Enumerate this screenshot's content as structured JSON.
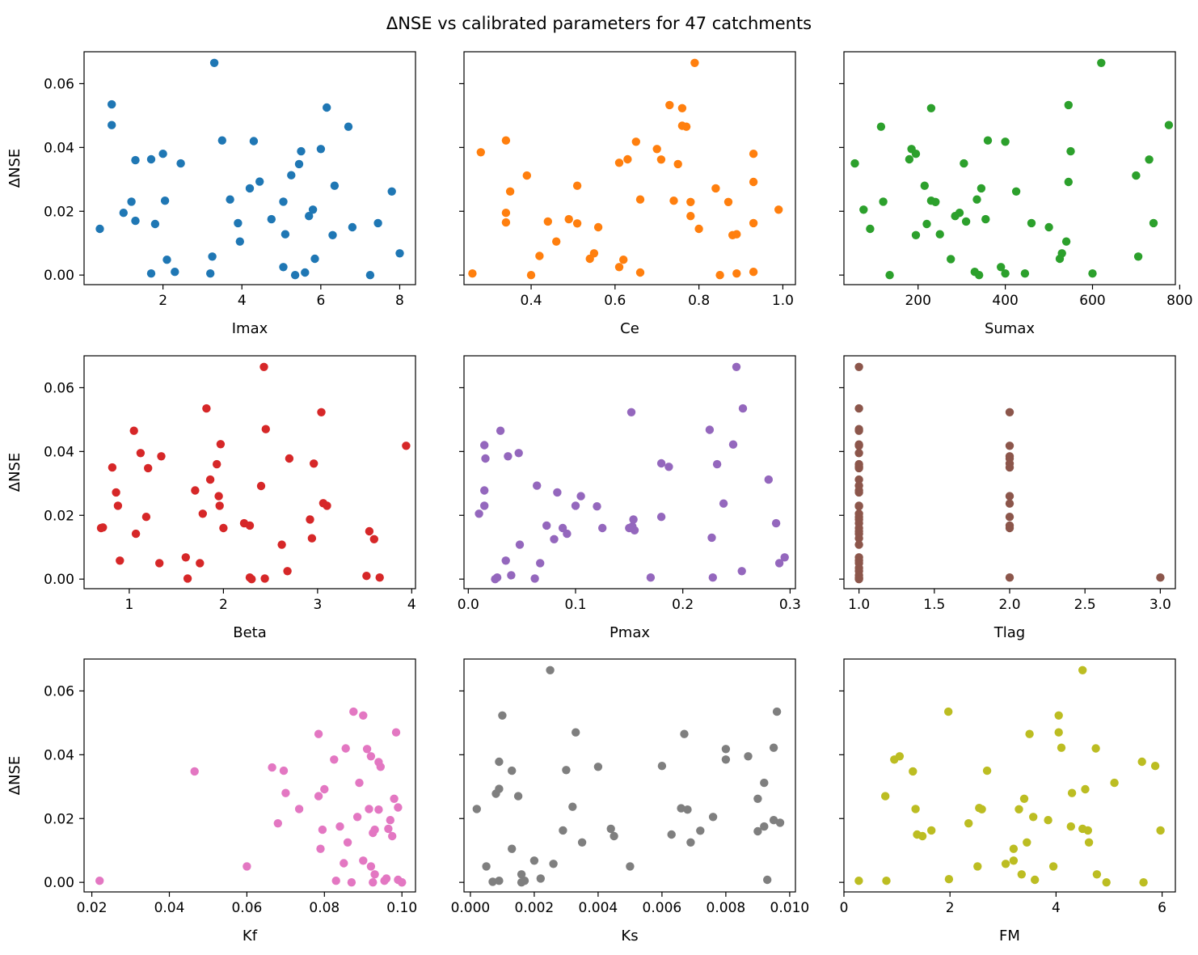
{
  "title": "ΔNSE vs calibrated parameters for 47 catchments",
  "chart_data": [
    {
      "type": "scatter",
      "xlabel": "Imax",
      "ylabel": "ΔNSE",
      "color": "#1f77b4",
      "xlim": [
        0,
        8.4
      ],
      "ylim": [
        -0.003,
        0.07
      ],
      "xticks": [
        2,
        4,
        6,
        8
      ],
      "xtick_labels": [
        "2",
        "4",
        "6",
        "8"
      ],
      "yticks": [
        0,
        0.02,
        0.04,
        0.06
      ],
      "ytick_labels": [
        "0.00",
        "0.02",
        "0.04",
        "0.06"
      ],
      "x": [
        0.4,
        0.7,
        0.7,
        1.0,
        1.2,
        1.3,
        1.3,
        1.7,
        1.7,
        1.8,
        2.0,
        2.05,
        2.1,
        2.3,
        2.45,
        3.2,
        3.25,
        3.3,
        3.5,
        3.7,
        3.9,
        3.95,
        4.2,
        4.3,
        4.45,
        4.75,
        5.05,
        5.05,
        5.1,
        5.25,
        5.35,
        5.45,
        5.5,
        5.6,
        5.7,
        5.8,
        5.85,
        6.0,
        6.15,
        6.3,
        6.35,
        6.7,
        6.8,
        7.25,
        7.45,
        7.8,
        8.0
      ],
      "y": [
        0.0145,
        0.0535,
        0.047,
        0.0195,
        0.023,
        0.036,
        0.017,
        0.0363,
        0.0005,
        0.016,
        0.038,
        0.0233,
        0.0048,
        0.001,
        0.035,
        0.0005,
        0.0058,
        0.0665,
        0.0422,
        0.0237,
        0.0163,
        0.0105,
        0.0272,
        0.042,
        0.0293,
        0.0175,
        0.0025,
        0.023,
        0.0128,
        0.0313,
        0.0,
        0.0348,
        0.0388,
        0.0008,
        0.0185,
        0.0205,
        0.0051,
        0.0395,
        0.0525,
        0.0125,
        0.028,
        0.0465,
        0.015,
        0.0,
        0.0163,
        0.0262,
        0.0068
      ]
    },
    {
      "type": "scatter",
      "xlabel": "Ce",
      "ylabel": "ΔNSE",
      "color": "#ff7f0e",
      "xlim": [
        0.24,
        1.03
      ],
      "ylim": [
        -0.003,
        0.07
      ],
      "xticks": [
        0.4,
        0.6,
        0.8,
        1.0
      ],
      "xtick_labels": [
        "0.4",
        "0.6",
        "0.8",
        "1.0"
      ],
      "yticks": [
        0,
        0.02,
        0.04,
        0.06
      ],
      "ytick_labels": [
        "0.00",
        "0.02",
        "0.04",
        "0.06"
      ],
      "x": [
        0.26,
        0.28,
        0.34,
        0.34,
        0.34,
        0.35,
        0.39,
        0.4,
        0.42,
        0.44,
        0.46,
        0.49,
        0.51,
        0.51,
        0.54,
        0.55,
        0.56,
        0.61,
        0.61,
        0.62,
        0.63,
        0.65,
        0.66,
        0.66,
        0.7,
        0.71,
        0.73,
        0.74,
        0.75,
        0.76,
        0.76,
        0.77,
        0.78,
        0.78,
        0.79,
        0.8,
        0.84,
        0.85,
        0.87,
        0.88,
        0.89,
        0.89,
        0.93,
        0.93,
        0.93,
        0.93,
        0.99
      ],
      "y": [
        0.0005,
        0.0385,
        0.0165,
        0.0195,
        0.0422,
        0.0262,
        0.0312,
        0.0,
        0.006,
        0.0168,
        0.0105,
        0.0175,
        0.028,
        0.0162,
        0.0051,
        0.0068,
        0.015,
        0.0025,
        0.0352,
        0.0048,
        0.0363,
        0.0418,
        0.0237,
        0.0008,
        0.0395,
        0.0362,
        0.0533,
        0.0233,
        0.0348,
        0.0523,
        0.0468,
        0.0465,
        0.0185,
        0.0229,
        0.0665,
        0.0145,
        0.0272,
        0.0,
        0.0229,
        0.0125,
        0.0128,
        0.0005,
        0.038,
        0.0292,
        0.0163,
        0.001,
        0.0205
      ]
    },
    {
      "type": "scatter",
      "xlabel": "Sumax",
      "ylabel": "ΔNSE",
      "color": "#2ca02c",
      "xlim": [
        30,
        790
      ],
      "ylim": [
        -0.003,
        0.07
      ],
      "xticks": [
        200,
        400,
        600,
        800
      ],
      "xtick_labels": [
        "200",
        "400",
        "600",
        "800"
      ],
      "yticks": [
        0,
        0.02,
        0.04,
        0.06
      ],
      "ytick_labels": [
        "0.00",
        "0.02",
        "0.04",
        "0.06"
      ],
      "x": [
        55,
        75,
        90,
        115,
        120,
        135,
        180,
        185,
        195,
        195,
        215,
        220,
        230,
        230,
        240,
        250,
        275,
        285,
        295,
        305,
        310,
        330,
        335,
        340,
        345,
        355,
        360,
        390,
        400,
        400,
        425,
        445,
        460,
        500,
        525,
        530,
        540,
        545,
        545,
        550,
        600,
        620,
        700,
        705,
        730,
        740,
        775
      ],
      "y": [
        0.035,
        0.0205,
        0.0145,
        0.0465,
        0.023,
        0.0,
        0.0363,
        0.0395,
        0.0125,
        0.038,
        0.028,
        0.016,
        0.0233,
        0.0523,
        0.0229,
        0.0128,
        0.005,
        0.0185,
        0.0195,
        0.035,
        0.0168,
        0.001,
        0.0237,
        0.0,
        0.0272,
        0.0175,
        0.0422,
        0.0025,
        0.0418,
        0.0005,
        0.0262,
        0.0005,
        0.0163,
        0.015,
        0.0051,
        0.0068,
        0.0105,
        0.0292,
        0.0533,
        0.0388,
        0.0005,
        0.0665,
        0.0312,
        0.0058,
        0.0362,
        0.0163,
        0.047
      ]
    },
    {
      "type": "scatter",
      "xlabel": "Beta",
      "ylabel": "ΔNSE",
      "color": "#d62728",
      "xlim": [
        0.52,
        4.04
      ],
      "ylim": [
        -0.003,
        0.07
      ],
      "xticks": [
        1,
        2,
        3,
        4
      ],
      "xtick_labels": [
        "1",
        "2",
        "3",
        "4"
      ],
      "yticks": [
        0,
        0.02,
        0.04,
        0.06
      ],
      "ytick_labels": [
        "0.00",
        "0.02",
        "0.04",
        "0.06"
      ],
      "x": [
        0.7,
        0.72,
        0.82,
        0.86,
        0.88,
        0.9,
        1.05,
        1.07,
        1.12,
        1.18,
        1.2,
        1.32,
        1.34,
        1.6,
        1.62,
        1.7,
        1.75,
        1.78,
        1.82,
        1.86,
        1.93,
        1.95,
        1.96,
        1.97,
        2.0,
        2.22,
        2.28,
        2.28,
        2.3,
        2.4,
        2.43,
        2.44,
        2.45,
        2.62,
        2.68,
        2.7,
        2.92,
        2.94,
        2.96,
        3.04,
        3.06,
        3.1,
        3.52,
        3.55,
        3.6,
        3.66,
        3.94
      ],
      "y": [
        0.016,
        0.0162,
        0.035,
        0.0272,
        0.023,
        0.0058,
        0.0465,
        0.0142,
        0.0395,
        0.0195,
        0.0348,
        0.005,
        0.0385,
        0.0068,
        0.0002,
        0.0278,
        0.005,
        0.0205,
        0.0535,
        0.0312,
        0.036,
        0.026,
        0.023,
        0.0423,
        0.016,
        0.0175,
        0.0005,
        0.0168,
        0.0,
        0.0292,
        0.0665,
        0.0002,
        0.047,
        0.0108,
        0.0025,
        0.0378,
        0.0187,
        0.0128,
        0.0362,
        0.0523,
        0.0238,
        0.023,
        0.001,
        0.015,
        0.0125,
        0.0005,
        0.0418
      ]
    },
    {
      "type": "scatter",
      "xlabel": "Pmax",
      "ylabel": "ΔNSE",
      "color": "#9467bd",
      "xlim": [
        -0.004,
        0.305
      ],
      "ylim": [
        -0.003,
        0.07
      ],
      "xticks": [
        0.0,
        0.1,
        0.2,
        0.3
      ],
      "xtick_labels": [
        "0.0",
        "0.1",
        "0.2",
        "0.3"
      ],
      "yticks": [
        0,
        0.02,
        0.04,
        0.06
      ],
      "ytick_labels": [
        "0.00",
        "0.02",
        "0.04",
        "0.06"
      ],
      "x": [
        0.01,
        0.015,
        0.015,
        0.015,
        0.016,
        0.025,
        0.027,
        0.03,
        0.035,
        0.037,
        0.04,
        0.047,
        0.048,
        0.062,
        0.064,
        0.067,
        0.073,
        0.08,
        0.083,
        0.088,
        0.092,
        0.1,
        0.105,
        0.12,
        0.125,
        0.152,
        0.153,
        0.154,
        0.155,
        0.17,
        0.18,
        0.18,
        0.187,
        0.225,
        0.227,
        0.228,
        0.232,
        0.238,
        0.247,
        0.25,
        0.255,
        0.256,
        0.28,
        0.287,
        0.29,
        0.295,
        0.15
      ],
      "y": [
        0.0205,
        0.0278,
        0.042,
        0.023,
        0.0378,
        0.0,
        0.0005,
        0.0465,
        0.0058,
        0.0385,
        0.0012,
        0.0395,
        0.0108,
        0.0002,
        0.0293,
        0.005,
        0.0168,
        0.0125,
        0.0272,
        0.016,
        0.0142,
        0.023,
        0.026,
        0.0228,
        0.016,
        0.0523,
        0.0165,
        0.0187,
        0.0153,
        0.0005,
        0.0363,
        0.0195,
        0.0352,
        0.0468,
        0.013,
        0.0005,
        0.036,
        0.0237,
        0.0422,
        0.0665,
        0.0025,
        0.0535,
        0.0312,
        0.0175,
        0.005,
        0.0068,
        0.016
      ]
    },
    {
      "type": "scatter",
      "xlabel": "Tlag",
      "ylabel": "ΔNSE",
      "color": "#8c564b",
      "xlim": [
        0.9,
        3.1
      ],
      "ylim": [
        -0.003,
        0.07
      ],
      "xticks": [
        1.0,
        1.5,
        2.0,
        2.5,
        3.0
      ],
      "xtick_labels": [
        "1.0",
        "1.5",
        "2.0",
        "2.5",
        "3.0"
      ],
      "yticks": [
        0,
        0.02,
        0.04,
        0.06
      ],
      "ytick_labels": [
        "0.00",
        "0.02",
        "0.04",
        "0.06"
      ],
      "x": [
        1,
        1,
        1,
        1,
        1,
        1,
        1,
        1,
        1,
        1,
        1,
        1,
        1,
        1,
        1,
        1,
        1,
        1,
        1,
        1,
        1,
        1,
        1,
        1,
        1,
        1,
        1,
        1,
        1,
        1,
        1,
        1,
        1,
        1,
        2,
        2,
        2,
        2,
        2,
        2,
        2,
        2,
        2,
        2,
        2,
        2,
        3
      ],
      "y": [
        0.0665,
        0.0535,
        0.047,
        0.0465,
        0.0422,
        0.0418,
        0.0395,
        0.036,
        0.0352,
        0.0348,
        0.0312,
        0.0293,
        0.0278,
        0.0272,
        0.023,
        0.0228,
        0.0205,
        0.0195,
        0.0187,
        0.0175,
        0.016,
        0.015,
        0.0142,
        0.0128,
        0.0108,
        0.0068,
        0.0058,
        0.005,
        0.0035,
        0.0025,
        0.0012,
        0.0005,
        0.0002,
        0.0,
        0.0523,
        0.0418,
        0.0385,
        0.0378,
        0.0362,
        0.035,
        0.026,
        0.0237,
        0.0195,
        0.0168,
        0.016,
        0.0005,
        0.0005
      ]
    },
    {
      "type": "scatter",
      "xlabel": "Kf",
      "ylabel": "ΔNSE",
      "color": "#e377c2",
      "xlim": [
        0.018,
        0.1035
      ],
      "ylim": [
        -0.003,
        0.07
      ],
      "xticks": [
        0.02,
        0.04,
        0.06,
        0.08,
        0.1
      ],
      "xtick_labels": [
        "0.02",
        "0.04",
        "0.06",
        "0.08",
        "0.10"
      ],
      "yticks": [
        0,
        0.02,
        0.04,
        0.06
      ],
      "ytick_labels": [
        "0.00",
        "0.02",
        "0.04",
        "0.06"
      ],
      "x": [
        0.022,
        0.0465,
        0.06,
        0.0665,
        0.068,
        0.0695,
        0.07,
        0.0735,
        0.0785,
        0.0785,
        0.079,
        0.0795,
        0.08,
        0.0825,
        0.083,
        0.084,
        0.085,
        0.0855,
        0.086,
        0.087,
        0.0875,
        0.0885,
        0.089,
        0.09,
        0.09,
        0.091,
        0.0915,
        0.092,
        0.092,
        0.0925,
        0.093,
        0.093,
        0.094,
        0.094,
        0.0945,
        0.0955,
        0.096,
        0.0965,
        0.097,
        0.0975,
        0.098,
        0.0985,
        0.099,
        0.099,
        0.1,
        0.1,
        0.0925
      ],
      "y": [
        0.0005,
        0.0348,
        0.005,
        0.036,
        0.0185,
        0.035,
        0.028,
        0.023,
        0.0465,
        0.027,
        0.0105,
        0.0165,
        0.0292,
        0.0385,
        0.0005,
        0.0175,
        0.006,
        0.042,
        0.0125,
        0.0,
        0.0535,
        0.0205,
        0.0312,
        0.0523,
        0.0068,
        0.0418,
        0.023,
        0.0395,
        0.005,
        0.0155,
        0.0165,
        0.0025,
        0.0377,
        0.0228,
        0.0362,
        0.0005,
        0.0012,
        0.0168,
        0.0195,
        0.0145,
        0.0262,
        0.047,
        0.0235,
        0.0008,
        0.0,
        0.0,
        0.0
      ]
    },
    {
      "type": "scatter",
      "xlabel": "Ks",
      "ylabel": "ΔNSE",
      "color": "#7f7f7f",
      "xlim": [
        -0.0002,
        0.01018
      ],
      "ylim": [
        -0.003,
        0.07
      ],
      "xticks": [
        0,
        0.002,
        0.004,
        0.006,
        0.008,
        0.01
      ],
      "xtick_labels": [
        "0.000",
        "0.002",
        "0.004",
        "0.006",
        "0.008",
        "0.010"
      ],
      "yticks": [
        0,
        0.02,
        0.04,
        0.06
      ],
      "ytick_labels": [
        "0.00",
        "0.02",
        "0.04",
        "0.06"
      ],
      "x": [
        0.0002,
        0.0005,
        0.0007,
        0.0008,
        0.0009,
        0.0009,
        0.0009,
        0.001,
        0.0013,
        0.0013,
        0.0015,
        0.0016,
        0.0017,
        0.002,
        0.0022,
        0.0025,
        0.0026,
        0.0029,
        0.003,
        0.0032,
        0.0033,
        0.0035,
        0.004,
        0.0044,
        0.0045,
        0.005,
        0.006,
        0.0063,
        0.0066,
        0.0067,
        0.0068,
        0.0069,
        0.0072,
        0.0076,
        0.008,
        0.008,
        0.0087,
        0.009,
        0.009,
        0.0092,
        0.0092,
        0.0093,
        0.0095,
        0.0095,
        0.0096,
        0.0097,
        0.0016
      ],
      "y": [
        0.023,
        0.005,
        0.0002,
        0.0278,
        0.0378,
        0.0005,
        0.0293,
        0.0523,
        0.035,
        0.0105,
        0.027,
        0.0025,
        0.0005,
        0.0068,
        0.0012,
        0.0665,
        0.0058,
        0.0163,
        0.0352,
        0.0237,
        0.047,
        0.0125,
        0.0362,
        0.0168,
        0.0145,
        0.005,
        0.0365,
        0.015,
        0.0232,
        0.0465,
        0.0228,
        0.0125,
        0.0162,
        0.0205,
        0.0418,
        0.0385,
        0.0395,
        0.016,
        0.0262,
        0.0312,
        0.0175,
        0.0008,
        0.0422,
        0.0195,
        0.0535,
        0.0187,
        0.0
      ]
    },
    {
      "type": "scatter",
      "xlabel": "FM",
      "ylabel": "ΔNSE",
      "color": "#bcbd22",
      "xlim": [
        0,
        6.25
      ],
      "ylim": [
        -0.003,
        0.07
      ],
      "xticks": [
        0,
        2,
        4,
        6
      ],
      "xtick_labels": [
        "0",
        "2",
        "4",
        "6"
      ],
      "yticks": [
        0,
        0.02,
        0.04,
        0.06
      ],
      "ytick_labels": [
        "0.00",
        "0.02",
        "0.04",
        "0.06"
      ],
      "x": [
        0.28,
        0.8,
        0.78,
        0.95,
        1.05,
        1.3,
        1.35,
        1.38,
        1.48,
        1.65,
        1.97,
        1.98,
        2.35,
        2.52,
        2.55,
        2.6,
        2.7,
        3.05,
        3.2,
        3.2,
        3.3,
        3.35,
        3.4,
        3.45,
        3.5,
        3.57,
        3.6,
        3.85,
        3.95,
        4.05,
        4.05,
        4.1,
        4.28,
        4.3,
        4.5,
        4.5,
        4.55,
        4.6,
        4.62,
        4.75,
        4.77,
        4.95,
        5.1,
        5.62,
        5.65,
        5.87,
        5.97
      ],
      "y": [
        0.0005,
        0.0005,
        0.027,
        0.0385,
        0.0395,
        0.0348,
        0.023,
        0.015,
        0.0145,
        0.0163,
        0.0535,
        0.001,
        0.0185,
        0.005,
        0.0233,
        0.0229,
        0.035,
        0.0058,
        0.0068,
        0.0105,
        0.0229,
        0.0025,
        0.0262,
        0.0125,
        0.0465,
        0.0205,
        0.0008,
        0.0195,
        0.005,
        0.0523,
        0.047,
        0.0422,
        0.0175,
        0.028,
        0.0665,
        0.0168,
        0.0292,
        0.0163,
        0.0125,
        0.042,
        0.0025,
        0.0,
        0.0312,
        0.0378,
        0.0,
        0.0365,
        0.0163
      ]
    }
  ]
}
